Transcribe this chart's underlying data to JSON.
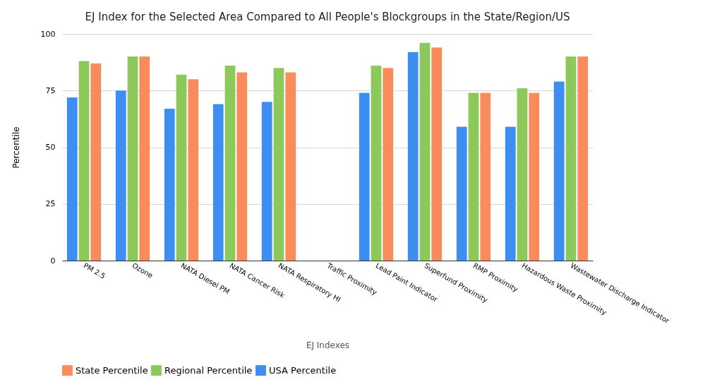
{
  "chart_data": {
    "type": "bar",
    "title": "EJ Index for the Selected Area Compared to All People's Blockgroups in the State/Region/US",
    "xlabel": "EJ Indexes",
    "ylabel": "Percentile",
    "categories": [
      "PM 2.5",
      "Ozone",
      "NATA Diesel PM",
      "NATA Cancer Risk",
      "NATA Respiratory HI",
      "Traffic Proximity",
      "Lead Paint Indicator",
      "Superfund Proximity",
      "RMP Proximity",
      "Hazardous Waste Proximity",
      "Wastewater Discharge Indicator"
    ],
    "series": [
      {
        "name": "USA  Percentile",
        "color": "#3d8ef0",
        "values": [
          72,
          75,
          67,
          69,
          70,
          null,
          74,
          92,
          59,
          59,
          79
        ]
      },
      {
        "name": "Regional Percentile",
        "color": "#8cc85a",
        "values": [
          88,
          90,
          82,
          86,
          85,
          null,
          86,
          96,
          74,
          76,
          90
        ]
      },
      {
        "name": "State Percentile",
        "color": "#f98c5c",
        "values": [
          87,
          90,
          80,
          83,
          83,
          null,
          85,
          94,
          74,
          74,
          90
        ]
      }
    ],
    "ylim": [
      0,
      100
    ],
    "yticks": [
      0,
      25,
      50,
      75,
      100
    ],
    "grid": "y",
    "legend": "bottom"
  }
}
